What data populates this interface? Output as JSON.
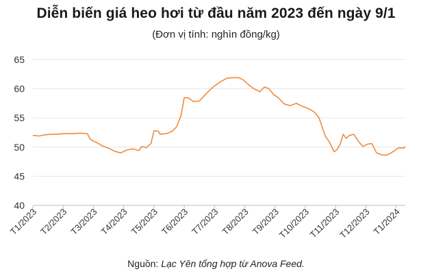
{
  "title": "Diễn biến giá heo hơi từ đầu năm 2023 đến ngày 9/1",
  "subtitle": "(Đơn vị tính: nghìn đồng/kg)",
  "source": {
    "prefix": "Nguồn: ",
    "text": "Lạc Yên tổng hợp từ Anova Feed."
  },
  "chart_data": {
    "type": "line",
    "ylim": [
      40,
      65
    ],
    "yticks": [
      "40",
      "45",
      "50",
      "55",
      "60",
      "65"
    ],
    "grid": "horizontal",
    "line_color": "#f08a3c",
    "xtick_labels": [
      "T1/2023",
      "T2/2023",
      "T3/2023",
      "T4/2023",
      "T5/2023",
      "T6/2023",
      "T7/2023",
      "T8/2023",
      "T9/2023",
      "T10/2023",
      "T11/2023",
      "T12/2023",
      "T1/2024"
    ],
    "xlim": [
      0,
      12.3
    ],
    "series": [
      {
        "points": [
          [
            0,
            52.0
          ],
          [
            0.2,
            51.9
          ],
          [
            0.4,
            52.1
          ],
          [
            0.6,
            52.2
          ],
          [
            0.8,
            52.2
          ],
          [
            1.0,
            52.3
          ],
          [
            1.3,
            52.3
          ],
          [
            1.6,
            52.4
          ],
          [
            1.8,
            52.3
          ],
          [
            1.9,
            51.3
          ],
          [
            2.1,
            50.8
          ],
          [
            2.3,
            50.2
          ],
          [
            2.5,
            49.8
          ],
          [
            2.7,
            49.3
          ],
          [
            2.9,
            49.0
          ],
          [
            3.1,
            49.5
          ],
          [
            3.3,
            49.7
          ],
          [
            3.5,
            49.4
          ],
          [
            3.6,
            50.1
          ],
          [
            3.75,
            49.9
          ],
          [
            3.9,
            50.6
          ],
          [
            4.0,
            52.8
          ],
          [
            4.15,
            52.7
          ],
          [
            4.2,
            52.2
          ],
          [
            4.4,
            52.3
          ],
          [
            4.6,
            52.7
          ],
          [
            4.75,
            53.5
          ],
          [
            4.9,
            55.5
          ],
          [
            5.0,
            58.5
          ],
          [
            5.15,
            58.4
          ],
          [
            5.3,
            57.8
          ],
          [
            5.5,
            57.9
          ],
          [
            5.7,
            59.0
          ],
          [
            5.85,
            59.8
          ],
          [
            6.0,
            60.5
          ],
          [
            6.2,
            61.2
          ],
          [
            6.4,
            61.8
          ],
          [
            6.6,
            61.9
          ],
          [
            6.8,
            61.9
          ],
          [
            6.95,
            61.5
          ],
          [
            7.1,
            60.8
          ],
          [
            7.3,
            60.0
          ],
          [
            7.5,
            59.5
          ],
          [
            7.65,
            60.3
          ],
          [
            7.8,
            60.0
          ],
          [
            7.95,
            59.0
          ],
          [
            8.1,
            58.5
          ],
          [
            8.3,
            57.4
          ],
          [
            8.5,
            57.1
          ],
          [
            8.7,
            57.5
          ],
          [
            8.9,
            57.0
          ],
          [
            9.1,
            56.6
          ],
          [
            9.3,
            56.0
          ],
          [
            9.45,
            55.0
          ],
          [
            9.55,
            53.5
          ],
          [
            9.65,
            52.0
          ],
          [
            9.8,
            50.8
          ],
          [
            9.95,
            49.2
          ],
          [
            10.05,
            49.6
          ],
          [
            10.15,
            50.5
          ],
          [
            10.25,
            52.2
          ],
          [
            10.35,
            51.5
          ],
          [
            10.45,
            52.0
          ],
          [
            10.6,
            52.2
          ],
          [
            10.75,
            51.0
          ],
          [
            10.9,
            50.1
          ],
          [
            11.05,
            50.5
          ],
          [
            11.2,
            50.6
          ],
          [
            11.35,
            49.0
          ],
          [
            11.5,
            48.7
          ],
          [
            11.65,
            48.6
          ],
          [
            11.8,
            48.9
          ],
          [
            11.95,
            49.4
          ],
          [
            12.05,
            49.8
          ],
          [
            12.15,
            49.9
          ],
          [
            12.25,
            49.8
          ],
          [
            12.3,
            50.1
          ]
        ]
      }
    ]
  }
}
